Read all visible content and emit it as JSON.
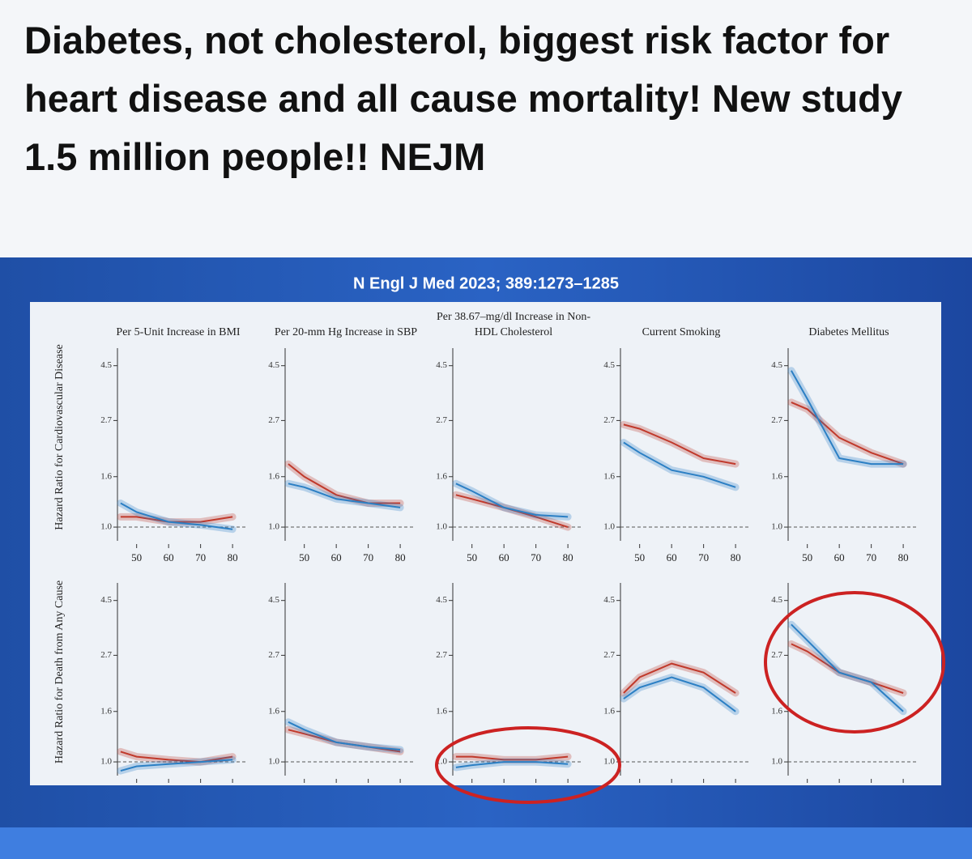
{
  "header": {
    "headline": "Diabetes, not cholesterol, biggest risk factor for heart disease and all cause mortality! New study 1.5 million people!! NEJM"
  },
  "citation": "N Engl J Med 2023; 389:1273–1285",
  "chart_data": [
    {
      "type": "line",
      "title": "Per 5-Unit Increase in BMI",
      "ylabel": "Hazard Ratio for Cardiovascular Disease",
      "x": [
        45,
        50,
        60,
        70,
        80
      ],
      "xlim": [
        44,
        82
      ],
      "xticks": [
        50,
        60,
        70,
        80
      ],
      "x_tick_labels": true,
      "ylim": [
        0.88,
        5.3
      ],
      "yticks": [
        {
          "value": 1,
          "label": "1.0"
        },
        1.6,
        2.7,
        4.5
      ],
      "log_scale": true,
      "series": [
        {
          "color": "#c0392b",
          "values": [
            1.1,
            1.1,
            1.05,
            1.05,
            1.1
          ]
        },
        {
          "color": "#2b7fc4",
          "values": [
            1.25,
            1.15,
            1.05,
            1.02,
            0.98
          ]
        }
      ]
    },
    {
      "type": "line",
      "title": "Per 20-mm Hg Increase in SBP",
      "x": [
        45,
        50,
        60,
        70,
        80
      ],
      "xlim": [
        44,
        82
      ],
      "xticks": [
        50,
        60,
        70,
        80
      ],
      "x_tick_labels": true,
      "ylim": [
        0.88,
        5.3
      ],
      "yticks": [
        {
          "value": 1,
          "label": "1.0"
        },
        1.6,
        2.7,
        4.5
      ],
      "log_scale": true,
      "series": [
        {
          "color": "#c0392b",
          "values": [
            1.8,
            1.6,
            1.35,
            1.25,
            1.25
          ]
        },
        {
          "color": "#2b7fc4",
          "values": [
            1.5,
            1.45,
            1.3,
            1.25,
            1.2
          ]
        }
      ]
    },
    {
      "type": "line",
      "title": "Per 38.67–mg/dl Increase in Non-HDL Cholesterol",
      "x": [
        45,
        50,
        60,
        70,
        80
      ],
      "xlim": [
        44,
        82
      ],
      "xticks": [
        50,
        60,
        70,
        80
      ],
      "x_tick_labels": true,
      "ylim": [
        0.88,
        5.3
      ],
      "yticks": [
        {
          "value": 1,
          "label": "1.0"
        },
        1.6,
        2.7,
        4.5
      ],
      "log_scale": true,
      "series": [
        {
          "color": "#c0392b",
          "values": [
            1.35,
            1.3,
            1.2,
            1.1,
            1.0
          ]
        },
        {
          "color": "#2b7fc4",
          "values": [
            1.5,
            1.4,
            1.2,
            1.12,
            1.1
          ]
        }
      ]
    },
    {
      "type": "line",
      "title": "Current Smoking",
      "x": [
        45,
        50,
        60,
        70,
        80
      ],
      "xlim": [
        44,
        82
      ],
      "xticks": [
        50,
        60,
        70,
        80
      ],
      "x_tick_labels": true,
      "ylim": [
        0.88,
        5.3
      ],
      "yticks": [
        {
          "value": 1,
          "label": "1.0"
        },
        1.6,
        2.7,
        4.5
      ],
      "log_scale": true,
      "series": [
        {
          "color": "#c0392b",
          "values": [
            2.6,
            2.5,
            2.2,
            1.9,
            1.8
          ]
        },
        {
          "color": "#2b7fc4",
          "values": [
            2.2,
            2.0,
            1.7,
            1.6,
            1.45
          ]
        }
      ]
    },
    {
      "type": "line",
      "title": "Diabetes Mellitus",
      "x": [
        45,
        50,
        60,
        70,
        80
      ],
      "xlim": [
        44,
        82
      ],
      "xticks": [
        50,
        60,
        70,
        80
      ],
      "x_tick_labels": true,
      "ylim": [
        0.88,
        5.3
      ],
      "yticks": [
        {
          "value": 1,
          "label": "1.0"
        },
        1.6,
        2.7,
        4.5
      ],
      "log_scale": true,
      "series": [
        {
          "color": "#c0392b",
          "values": [
            3.2,
            3.0,
            2.3,
            2.0,
            1.8
          ]
        },
        {
          "color": "#2b7fc4",
          "values": [
            4.3,
            3.3,
            1.9,
            1.8,
            1.8
          ]
        }
      ]
    },
    {
      "type": "line",
      "ylabel": "Hazard Ratio for Death from Any Cause",
      "x": [
        45,
        50,
        60,
        70,
        80
      ],
      "xlim": [
        44,
        82
      ],
      "xticks": [
        50,
        60,
        70,
        80
      ],
      "x_tick_labels": false,
      "ylim": [
        0.88,
        5.3
      ],
      "yticks": [
        {
          "value": 1,
          "label": "1.0"
        },
        1.6,
        2.7,
        4.5
      ],
      "log_scale": true,
      "series": [
        {
          "color": "#c0392b",
          "values": [
            1.1,
            1.05,
            1.02,
            1.0,
            1.05
          ]
        },
        {
          "color": "#2b7fc4",
          "values": [
            0.92,
            0.96,
            0.98,
            1.0,
            1.02
          ]
        }
      ]
    },
    {
      "type": "line",
      "x": [
        45,
        50,
        60,
        70,
        80
      ],
      "xlim": [
        44,
        82
      ],
      "xticks": [
        50,
        60,
        70,
        80
      ],
      "x_tick_labels": false,
      "ylim": [
        0.88,
        5.3
      ],
      "yticks": [
        {
          "value": 1,
          "label": "1.0"
        },
        1.6,
        2.7,
        4.5
      ],
      "log_scale": true,
      "series": [
        {
          "color": "#c0392b",
          "values": [
            1.35,
            1.3,
            1.2,
            1.15,
            1.1
          ]
        },
        {
          "color": "#2b7fc4",
          "values": [
            1.45,
            1.35,
            1.2,
            1.15,
            1.12
          ]
        }
      ]
    },
    {
      "type": "line",
      "x": [
        45,
        50,
        60,
        70,
        80
      ],
      "xlim": [
        44,
        82
      ],
      "xticks": [
        50,
        60,
        70,
        80
      ],
      "x_tick_labels": false,
      "ylim": [
        0.88,
        5.3
      ],
      "yticks": [
        {
          "value": 1,
          "label": "1.0"
        },
        1.6,
        2.7,
        4.5
      ],
      "log_scale": true,
      "series": [
        {
          "color": "#c0392b",
          "values": [
            1.05,
            1.05,
            1.02,
            1.02,
            1.05
          ]
        },
        {
          "color": "#2b7fc4",
          "values": [
            0.95,
            0.97,
            1.0,
            1.0,
            0.98
          ]
        }
      ]
    },
    {
      "type": "line",
      "x": [
        45,
        50,
        60,
        70,
        80
      ],
      "xlim": [
        44,
        82
      ],
      "xticks": [
        50,
        60,
        70,
        80
      ],
      "x_tick_labels": false,
      "ylim": [
        0.88,
        5.3
      ],
      "yticks": [
        {
          "value": 1,
          "label": "1.0"
        },
        1.6,
        2.7,
        4.5
      ],
      "log_scale": true,
      "series": [
        {
          "color": "#c0392b",
          "values": [
            1.9,
            2.2,
            2.5,
            2.3,
            1.9
          ]
        },
        {
          "color": "#2b7fc4",
          "values": [
            1.8,
            2.0,
            2.2,
            2.0,
            1.6
          ]
        }
      ]
    },
    {
      "type": "line",
      "x": [
        45,
        50,
        60,
        70,
        80
      ],
      "xlim": [
        44,
        82
      ],
      "xticks": [
        50,
        60,
        70,
        80
      ],
      "x_tick_labels": false,
      "ylim": [
        0.88,
        5.3
      ],
      "yticks": [
        {
          "value": 1,
          "label": "1.0"
        },
        1.6,
        2.7,
        4.5
      ],
      "log_scale": true,
      "series": [
        {
          "color": "#c0392b",
          "values": [
            3.0,
            2.8,
            2.3,
            2.1,
            1.9
          ]
        },
        {
          "color": "#2b7fc4",
          "values": [
            3.6,
            3.1,
            2.3,
            2.1,
            1.6
          ]
        }
      ]
    }
  ]
}
